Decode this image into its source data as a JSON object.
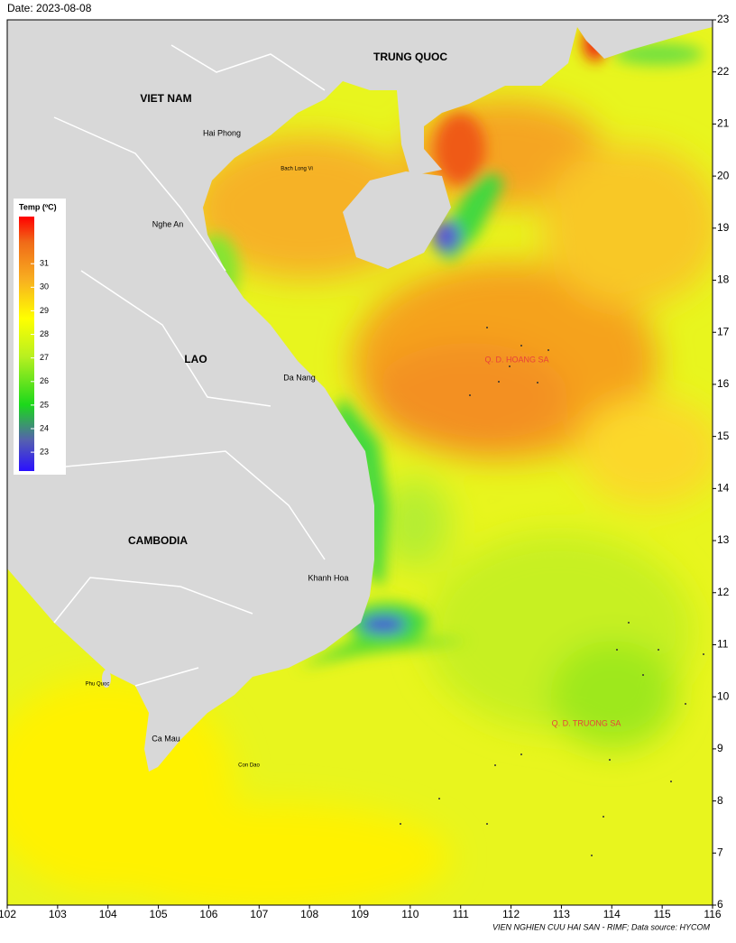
{
  "title": "Date: 2023-08-08",
  "map": {
    "xlim": [
      102,
      116
    ],
    "ylim": [
      6,
      23
    ],
    "xticks": [
      102,
      103,
      104,
      105,
      106,
      107,
      108,
      109,
      110,
      111,
      112,
      113,
      114,
      115,
      116
    ],
    "yticks": [
      6,
      7,
      8,
      9,
      10,
      11,
      12,
      13,
      14,
      15,
      16,
      17,
      18,
      19,
      20,
      21,
      22,
      23
    ]
  },
  "legend": {
    "title": "Temp (ºC)",
    "clim": [
      22.2,
      33
    ],
    "ticks": [
      23,
      24,
      25,
      26,
      27,
      28,
      29,
      30,
      31
    ]
  },
  "countries": [
    "TRUNG QUOC",
    "VIET NAM",
    "LAO",
    "CAMBODIA"
  ],
  "places": [
    "Hai Phong",
    "Bach Long Vi",
    "Nghe An",
    "Da Nang",
    "Khanh Hoa",
    "Phu Quoc",
    "Ca Mau",
    "Con Dao"
  ],
  "islands": [
    "Q. D. HOANG SA",
    "Q. D. TRUONG SA"
  ],
  "footer": "VIEN NGHIEN CUU HAI SAN - RIMF; Data source: HYCOM"
}
